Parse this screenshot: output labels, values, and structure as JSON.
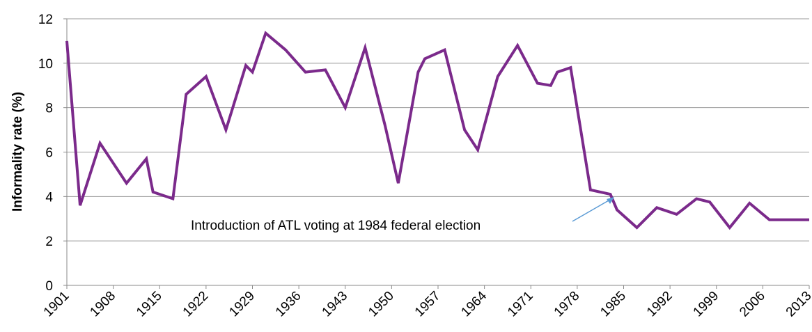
{
  "chart_data": {
    "type": "line",
    "title": "",
    "xlabel": "",
    "ylabel": "Informality rate (%)",
    "ylim": [
      0,
      12
    ],
    "xlim": [
      1901,
      2013
    ],
    "yticks": [
      "0",
      "2",
      "4",
      "6",
      "8",
      "10",
      "12"
    ],
    "xticks": [
      "1901",
      "1908",
      "1915",
      "1922",
      "1929",
      "1936",
      "1943",
      "1950",
      "1957",
      "1964",
      "1971",
      "1978",
      "1985",
      "1992",
      "1999",
      "2006",
      "2013"
    ],
    "grid": true,
    "legend": "none",
    "series": [
      {
        "color": "#7b2a8b",
        "x": [
          1901,
          1903,
          1906,
          1910,
          1913,
          1914,
          1917,
          1919,
          1922,
          1925,
          1928,
          1929,
          1931,
          1934,
          1937,
          1940,
          1943,
          1946,
          1949,
          1951,
          1954,
          1955,
          1958,
          1961,
          1963,
          1966,
          1969,
          1972,
          1974,
          1975,
          1977,
          1980,
          1983,
          1984,
          1987,
          1990,
          1993,
          1996,
          1998,
          2001,
          2004,
          2007,
          2010,
          2013
        ],
        "y": [
          11.0,
          3.6,
          6.4,
          4.6,
          5.7,
          4.2,
          3.9,
          8.6,
          9.4,
          7.0,
          9.9,
          9.6,
          11.35,
          10.6,
          9.6,
          9.7,
          8.0,
          10.7,
          7.2,
          4.6,
          9.6,
          10.2,
          10.6,
          7.0,
          6.1,
          9.4,
          10.8,
          9.1,
          9.0,
          9.6,
          9.8,
          4.3,
          4.1,
          3.4,
          2.6,
          3.5,
          3.2,
          3.9,
          3.75,
          2.6,
          3.7,
          2.95,
          2.95,
          2.95
        ]
      }
    ],
    "annotations": [
      {
        "text": "Introduction  of ATL voting at 1984 federal election",
        "x": 1984,
        "y": 4.0
      }
    ]
  }
}
